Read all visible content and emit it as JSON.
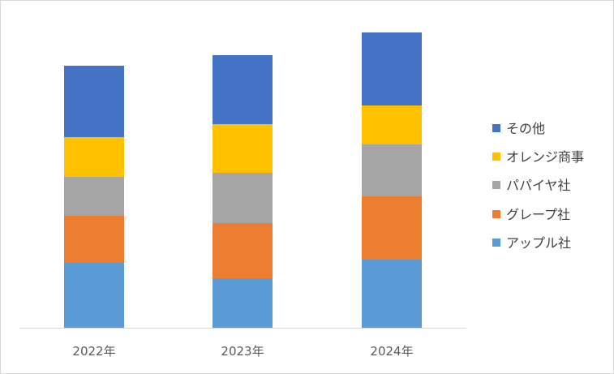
{
  "chart_data": {
    "type": "bar",
    "stacked": true,
    "categories": [
      "2022年",
      "2023年",
      "2024年"
    ],
    "series": [
      {
        "name": "アップル社",
        "color": "#5B9BD5",
        "values": [
          80,
          61,
          84
        ]
      },
      {
        "name": "グレープ社",
        "color": "#ED7D31",
        "values": [
          58,
          68,
          78
        ]
      },
      {
        "name": "パパイヤ社",
        "color": "#A5A5A5",
        "values": [
          48,
          62,
          64
        ]
      },
      {
        "name": "オレンジ商事",
        "color": "#FFC000",
        "values": [
          49,
          60,
          48
        ]
      },
      {
        "name": "その他",
        "color": "#4472C4",
        "values": [
          88,
          85,
          90
        ]
      }
    ],
    "ylim": [
      0,
      364
    ],
    "grid": false,
    "legend_position": "right"
  }
}
